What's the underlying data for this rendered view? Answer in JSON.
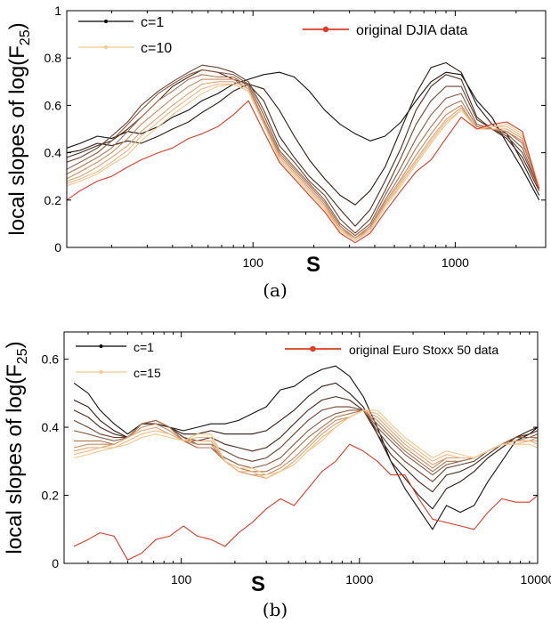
{
  "chart_data": [
    {
      "type": "line",
      "xscale": "log",
      "xlim": [
        12,
        2800
      ],
      "ylim": [
        0,
        1
      ],
      "xticks": [
        100,
        1000
      ],
      "yticks": [
        0,
        0.2,
        0.4,
        0.6,
        0.8,
        1
      ],
      "ylabel": "local slopes of log(F25)",
      "ylabel_main": "local slopes of log(F",
      "ylabel_sub": "25",
      "ylabel_close": ")",
      "xlabel": "S",
      "caption": "(a)",
      "legend": [
        {
          "label": "c=1",
          "color": "#000000"
        },
        {
          "label": "c=10",
          "color": "#f6c68a"
        },
        {
          "label": "original DJIA data",
          "color": "#e03a28"
        }
      ],
      "x": [
        12,
        14,
        17,
        20,
        24,
        28,
        34,
        40,
        48,
        56,
        67,
        80,
        95,
        113,
        135,
        160,
        190,
        226,
        270,
        320,
        380,
        450,
        540,
        640,
        760,
        900,
        1070,
        1280,
        1520,
        1800,
        2150,
        2600
      ],
      "series": [
        {
          "name": "c=1",
          "color": "#111111",
          "values": [
            0.42,
            0.44,
            0.47,
            0.46,
            0.49,
            0.48,
            0.51,
            0.55,
            0.58,
            0.62,
            0.65,
            0.69,
            0.71,
            0.73,
            0.74,
            0.72,
            0.66,
            0.58,
            0.52,
            0.48,
            0.45,
            0.47,
            0.53,
            0.62,
            0.7,
            0.74,
            0.73,
            0.62,
            0.55,
            0.44,
            0.33,
            0.2
          ]
        },
        {
          "color": "#2e1a12",
          "values": [
            0.4,
            0.41,
            0.44,
            0.43,
            0.45,
            0.44,
            0.47,
            0.5,
            0.53,
            0.57,
            0.61,
            0.66,
            0.69,
            0.67,
            0.58,
            0.47,
            0.37,
            0.29,
            0.22,
            0.18,
            0.24,
            0.34,
            0.5,
            0.65,
            0.76,
            0.78,
            0.74,
            0.6,
            0.52,
            0.48,
            0.36,
            0.22
          ]
        },
        {
          "color": "#4a2c1f",
          "values": [
            0.38,
            0.4,
            0.43,
            0.45,
            0.5,
            0.55,
            0.62,
            0.68,
            0.72,
            0.75,
            0.74,
            0.71,
            0.69,
            0.62,
            0.47,
            0.38,
            0.3,
            0.24,
            0.16,
            0.09,
            0.16,
            0.28,
            0.42,
            0.58,
            0.68,
            0.73,
            0.71,
            0.55,
            0.5,
            0.46,
            0.38,
            0.24
          ]
        },
        {
          "color": "#6b4230",
          "values": [
            0.36,
            0.38,
            0.42,
            0.47,
            0.53,
            0.6,
            0.66,
            0.7,
            0.74,
            0.77,
            0.76,
            0.74,
            0.7,
            0.58,
            0.43,
            0.36,
            0.28,
            0.22,
            0.12,
            0.06,
            0.12,
            0.24,
            0.38,
            0.52,
            0.62,
            0.68,
            0.68,
            0.54,
            0.5,
            0.47,
            0.4,
            0.25
          ]
        },
        {
          "color": "#8c5a40",
          "values": [
            0.33,
            0.36,
            0.4,
            0.45,
            0.52,
            0.58,
            0.65,
            0.69,
            0.73,
            0.75,
            0.74,
            0.73,
            0.69,
            0.56,
            0.41,
            0.34,
            0.27,
            0.2,
            0.1,
            0.05,
            0.1,
            0.22,
            0.34,
            0.46,
            0.56,
            0.63,
            0.65,
            0.52,
            0.5,
            0.48,
            0.42,
            0.25
          ]
        },
        {
          "color": "#ad7452",
          "values": [
            0.31,
            0.34,
            0.38,
            0.42,
            0.49,
            0.55,
            0.62,
            0.66,
            0.71,
            0.73,
            0.72,
            0.72,
            0.68,
            0.54,
            0.4,
            0.33,
            0.26,
            0.19,
            0.09,
            0.04,
            0.09,
            0.2,
            0.31,
            0.42,
            0.51,
            0.59,
            0.62,
            0.51,
            0.5,
            0.49,
            0.44,
            0.26
          ]
        },
        {
          "color": "#cc8c62",
          "values": [
            0.29,
            0.32,
            0.36,
            0.4,
            0.46,
            0.52,
            0.58,
            0.63,
            0.68,
            0.71,
            0.71,
            0.71,
            0.67,
            0.53,
            0.39,
            0.32,
            0.25,
            0.18,
            0.08,
            0.04,
            0.08,
            0.19,
            0.29,
            0.39,
            0.48,
            0.56,
            0.6,
            0.5,
            0.5,
            0.49,
            0.45,
            0.26
          ]
        },
        {
          "color": "#e3a273",
          "values": [
            0.28,
            0.3,
            0.34,
            0.38,
            0.43,
            0.49,
            0.55,
            0.6,
            0.65,
            0.69,
            0.7,
            0.7,
            0.67,
            0.52,
            0.38,
            0.31,
            0.24,
            0.17,
            0.08,
            0.03,
            0.08,
            0.18,
            0.28,
            0.37,
            0.46,
            0.54,
            0.59,
            0.5,
            0.5,
            0.5,
            0.46,
            0.26
          ]
        },
        {
          "color": "#f0b882",
          "values": [
            0.27,
            0.29,
            0.32,
            0.36,
            0.41,
            0.47,
            0.53,
            0.58,
            0.63,
            0.67,
            0.69,
            0.69,
            0.66,
            0.52,
            0.38,
            0.31,
            0.24,
            0.17,
            0.07,
            0.03,
            0.07,
            0.17,
            0.27,
            0.36,
            0.45,
            0.53,
            0.58,
            0.5,
            0.51,
            0.51,
            0.47,
            0.26
          ]
        },
        {
          "name": "c=10",
          "color": "#f6c68a",
          "values": [
            0.26,
            0.28,
            0.31,
            0.35,
            0.39,
            0.45,
            0.51,
            0.56,
            0.61,
            0.65,
            0.68,
            0.69,
            0.66,
            0.52,
            0.37,
            0.3,
            0.23,
            0.16,
            0.07,
            0.03,
            0.07,
            0.17,
            0.26,
            0.35,
            0.44,
            0.52,
            0.58,
            0.5,
            0.51,
            0.52,
            0.48,
            0.26
          ]
        },
        {
          "name": "original DJIA data",
          "color": "#e03a28",
          "values": [
            0.2,
            0.24,
            0.28,
            0.3,
            0.34,
            0.37,
            0.4,
            0.42,
            0.46,
            0.48,
            0.51,
            0.56,
            0.62,
            0.49,
            0.36,
            0.29,
            0.22,
            0.15,
            0.06,
            0.02,
            0.06,
            0.15,
            0.24,
            0.32,
            0.37,
            0.46,
            0.55,
            0.5,
            0.52,
            0.53,
            0.49,
            0.24
          ]
        }
      ]
    },
    {
      "type": "line",
      "xscale": "log",
      "xlim": [
        22,
        10000
      ],
      "ylim": [
        0,
        0.68
      ],
      "xticks": [
        100,
        1000,
        10000
      ],
      "yticks": [
        0,
        0.2,
        0.4,
        0.6
      ],
      "ylabel": "local slopes of log(F25)",
      "ylabel_main": "local slopes of log(F",
      "ylabel_sub": "25",
      "ylabel_close": ")",
      "xlabel": "S",
      "caption": "(b)",
      "legend": [
        {
          "label": "c=1",
          "color": "#000000"
        },
        {
          "label": "c=15",
          "color": "#f6c68a"
        },
        {
          "label": "original Euro Stoxx 50 data",
          "color": "#e03a28"
        }
      ],
      "x": [
        25,
        30,
        35,
        42,
        50,
        60,
        72,
        86,
        103,
        123,
        147,
        176,
        210,
        250,
        300,
        360,
        430,
        515,
        615,
        735,
        880,
        1050,
        1260,
        1500,
        1800,
        2150,
        2570,
        3080,
        3680,
        4400,
        5260,
        6300,
        7530,
        9000,
        10000
      ],
      "series": [
        {
          "name": "c=1",
          "color": "#111111",
          "values": [
            0.53,
            0.5,
            0.45,
            0.41,
            0.38,
            0.41,
            0.41,
            0.4,
            0.39,
            0.4,
            0.41,
            0.41,
            0.42,
            0.44,
            0.46,
            0.51,
            0.52,
            0.55,
            0.57,
            0.58,
            0.55,
            0.49,
            0.4,
            0.3,
            0.22,
            0.16,
            0.1,
            0.17,
            0.15,
            0.17,
            0.24,
            0.3,
            0.36,
            0.38,
            0.4
          ]
        },
        {
          "color": "#2e1a12",
          "values": [
            0.48,
            0.46,
            0.42,
            0.39,
            0.37,
            0.41,
            0.41,
            0.4,
            0.38,
            0.38,
            0.39,
            0.38,
            0.38,
            0.38,
            0.39,
            0.42,
            0.45,
            0.49,
            0.52,
            0.53,
            0.5,
            0.46,
            0.38,
            0.3,
            0.25,
            0.2,
            0.16,
            0.22,
            0.24,
            0.27,
            0.31,
            0.34,
            0.37,
            0.39,
            0.4
          ]
        },
        {
          "color": "#4a2c1f",
          "values": [
            0.45,
            0.43,
            0.4,
            0.38,
            0.37,
            0.41,
            0.42,
            0.4,
            0.37,
            0.36,
            0.37,
            0.35,
            0.34,
            0.33,
            0.34,
            0.37,
            0.41,
            0.45,
            0.48,
            0.49,
            0.48,
            0.45,
            0.38,
            0.32,
            0.28,
            0.24,
            0.21,
            0.26,
            0.27,
            0.29,
            0.32,
            0.35,
            0.37,
            0.38,
            0.39
          ]
        },
        {
          "color": "#6b4230",
          "values": [
            0.42,
            0.4,
            0.38,
            0.37,
            0.37,
            0.41,
            0.42,
            0.4,
            0.37,
            0.35,
            0.35,
            0.33,
            0.31,
            0.3,
            0.31,
            0.34,
            0.38,
            0.42,
            0.45,
            0.46,
            0.46,
            0.45,
            0.39,
            0.34,
            0.3,
            0.27,
            0.24,
            0.28,
            0.29,
            0.3,
            0.33,
            0.35,
            0.37,
            0.38,
            0.39
          ]
        },
        {
          "color": "#8c5a40",
          "values": [
            0.39,
            0.38,
            0.37,
            0.36,
            0.37,
            0.41,
            0.42,
            0.4,
            0.36,
            0.34,
            0.34,
            0.31,
            0.29,
            0.28,
            0.29,
            0.31,
            0.35,
            0.39,
            0.42,
            0.44,
            0.45,
            0.45,
            0.4,
            0.36,
            0.32,
            0.29,
            0.26,
            0.29,
            0.3,
            0.31,
            0.33,
            0.35,
            0.37,
            0.37,
            0.38
          ]
        },
        {
          "color": "#ad7452",
          "values": [
            0.36,
            0.36,
            0.36,
            0.35,
            0.37,
            0.41,
            0.42,
            0.4,
            0.36,
            0.34,
            0.34,
            0.3,
            0.28,
            0.27,
            0.27,
            0.29,
            0.33,
            0.37,
            0.4,
            0.43,
            0.44,
            0.45,
            0.41,
            0.37,
            0.33,
            0.3,
            0.27,
            0.3,
            0.3,
            0.31,
            0.33,
            0.35,
            0.36,
            0.37,
            0.37
          ]
        },
        {
          "color": "#cc8c62",
          "values": [
            0.34,
            0.35,
            0.35,
            0.35,
            0.37,
            0.4,
            0.41,
            0.39,
            0.36,
            0.35,
            0.35,
            0.3,
            0.27,
            0.26,
            0.26,
            0.28,
            0.31,
            0.35,
            0.39,
            0.42,
            0.43,
            0.45,
            0.42,
            0.38,
            0.34,
            0.31,
            0.28,
            0.31,
            0.31,
            0.31,
            0.33,
            0.35,
            0.36,
            0.36,
            0.37
          ]
        },
        {
          "color": "#e3a273",
          "values": [
            0.33,
            0.34,
            0.34,
            0.35,
            0.37,
            0.39,
            0.4,
            0.38,
            0.36,
            0.36,
            0.36,
            0.3,
            0.27,
            0.26,
            0.25,
            0.27,
            0.3,
            0.34,
            0.38,
            0.41,
            0.43,
            0.45,
            0.43,
            0.39,
            0.35,
            0.32,
            0.29,
            0.31,
            0.31,
            0.31,
            0.33,
            0.35,
            0.36,
            0.36,
            0.36
          ]
        },
        {
          "color": "#f0b882",
          "values": [
            0.32,
            0.33,
            0.34,
            0.34,
            0.36,
            0.38,
            0.39,
            0.38,
            0.36,
            0.37,
            0.37,
            0.3,
            0.27,
            0.27,
            0.25,
            0.27,
            0.29,
            0.33,
            0.37,
            0.4,
            0.43,
            0.45,
            0.44,
            0.4,
            0.36,
            0.33,
            0.3,
            0.32,
            0.31,
            0.31,
            0.33,
            0.35,
            0.35,
            0.36,
            0.35
          ]
        },
        {
          "name": "c=15",
          "color": "#f6c68a",
          "values": [
            0.31,
            0.32,
            0.33,
            0.34,
            0.35,
            0.37,
            0.38,
            0.37,
            0.36,
            0.38,
            0.38,
            0.3,
            0.28,
            0.28,
            0.26,
            0.27,
            0.29,
            0.33,
            0.36,
            0.4,
            0.43,
            0.45,
            0.45,
            0.41,
            0.37,
            0.34,
            0.31,
            0.33,
            0.32,
            0.31,
            0.33,
            0.35,
            0.35,
            0.35,
            0.34
          ]
        },
        {
          "name": "original Euro Stoxx 50 data",
          "color": "#e03a28",
          "values": [
            0.05,
            0.07,
            0.09,
            0.08,
            0.01,
            0.03,
            0.07,
            0.08,
            0.11,
            0.08,
            0.07,
            0.05,
            0.09,
            0.12,
            0.16,
            0.19,
            0.17,
            0.22,
            0.27,
            0.3,
            0.35,
            0.33,
            0.3,
            0.26,
            0.26,
            0.19,
            0.13,
            0.12,
            0.11,
            0.1,
            0.15,
            0.19,
            0.18,
            0.18,
            0.2
          ]
        }
      ]
    }
  ]
}
